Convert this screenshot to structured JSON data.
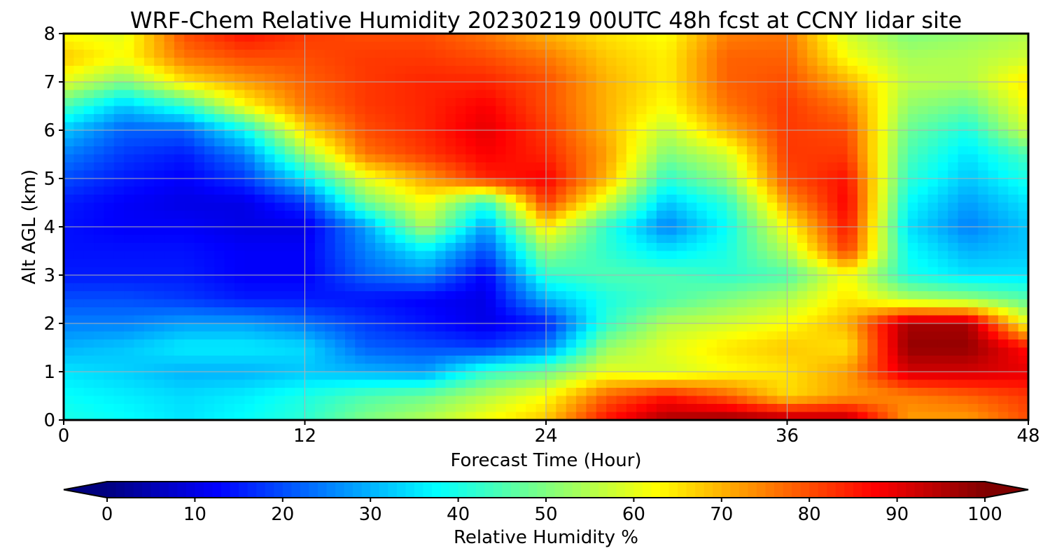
{
  "chart_data": {
    "type": "heatmap",
    "title": "WRF-Chem Relative Humidity 20230219 00UTC 48h fcst at CCNY lidar site",
    "xlabel": "Forecast Time (Hour)",
    "ylabel": "Alt AGL (km)",
    "xlim": [
      0,
      48
    ],
    "ylim": [
      0,
      8
    ],
    "xticks": [
      "0",
      "12",
      "24",
      "36",
      "48"
    ],
    "yticks": [
      "0",
      "1",
      "2",
      "3",
      "4",
      "5",
      "6",
      "7",
      "8"
    ],
    "grid": true,
    "colormap": "jet",
    "colorbar": {
      "label": "Relative Humidity %",
      "range": [
        0,
        100
      ],
      "ticks": [
        "0",
        "10",
        "20",
        "30",
        "40",
        "50",
        "60",
        "70",
        "80",
        "90",
        "100"
      ],
      "extend": "both"
    },
    "x_hours": [
      0,
      3,
      6,
      9,
      12,
      15,
      18,
      21,
      24,
      27,
      30,
      33,
      36,
      39,
      42,
      45,
      48
    ],
    "y_km": [
      0,
      0.5,
      1,
      1.5,
      2,
      2.5,
      3,
      3.5,
      4,
      4.5,
      5,
      5.5,
      6,
      6.5,
      7,
      7.5,
      8
    ],
    "rh": [
      [
        40,
        38,
        35,
        38,
        42,
        50,
        55,
        62,
        68,
        86,
        96,
        98,
        96,
        95,
        72,
        72,
        80
      ],
      [
        38,
        36,
        34,
        36,
        40,
        45,
        48,
        55,
        62,
        78,
        85,
        78,
        66,
        72,
        75,
        78,
        82
      ],
      [
        35,
        33,
        30,
        30,
        32,
        30,
        28,
        42,
        48,
        60,
        58,
        62,
        65,
        72,
        92,
        92,
        90
      ],
      [
        30,
        32,
        36,
        36,
        34,
        22,
        20,
        18,
        25,
        52,
        60,
        65,
        68,
        65,
        98,
        98,
        86
      ],
      [
        25,
        25,
        28,
        28,
        24,
        18,
        14,
        10,
        15,
        42,
        55,
        58,
        62,
        70,
        96,
        96,
        60
      ],
      [
        20,
        20,
        18,
        15,
        15,
        14,
        12,
        10,
        30,
        40,
        45,
        50,
        55,
        65,
        55,
        52,
        46
      ],
      [
        15,
        15,
        15,
        12,
        12,
        22,
        26,
        12,
        42,
        45,
        45,
        42,
        45,
        62,
        40,
        35,
        35
      ],
      [
        14,
        14,
        14,
        12,
        12,
        25,
        36,
        20,
        52,
        42,
        35,
        40,
        55,
        82,
        38,
        30,
        32
      ],
      [
        14,
        12,
        12,
        10,
        10,
        28,
        55,
        28,
        65,
        42,
        25,
        38,
        62,
        86,
        35,
        25,
        32
      ],
      [
        15,
        12,
        10,
        10,
        18,
        48,
        62,
        42,
        82,
        58,
        32,
        42,
        72,
        88,
        38,
        28,
        35
      ],
      [
        20,
        15,
        12,
        18,
        35,
        60,
        72,
        84,
        88,
        70,
        42,
        52,
        80,
        86,
        42,
        32,
        40
      ],
      [
        25,
        18,
        15,
        25,
        52,
        76,
        82,
        88,
        84,
        72,
        50,
        58,
        82,
        82,
        45,
        35,
        45
      ],
      [
        32,
        22,
        22,
        38,
        66,
        80,
        84,
        90,
        82,
        70,
        56,
        70,
        82,
        80,
        48,
        40,
        58
      ],
      [
        45,
        32,
        42,
        62,
        76,
        82,
        84,
        88,
        80,
        70,
        62,
        76,
        82,
        76,
        52,
        48,
        62
      ],
      [
        60,
        50,
        65,
        72,
        78,
        82,
        84,
        84,
        80,
        70,
        64,
        78,
        80,
        70,
        56,
        55,
        65
      ],
      [
        68,
        62,
        76,
        80,
        80,
        82,
        82,
        80,
        76,
        68,
        64,
        78,
        78,
        62,
        54,
        55,
        58
      ],
      [
        62,
        60,
        80,
        86,
        82,
        80,
        80,
        76,
        70,
        65,
        62,
        75,
        76,
        58,
        50,
        52,
        55
      ]
    ]
  }
}
